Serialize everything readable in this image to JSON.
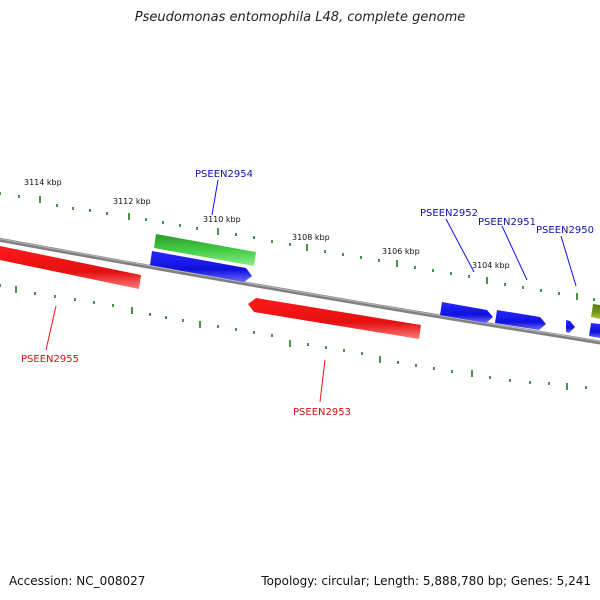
{
  "title": "Pseudomonas entomophila L48, complete genome",
  "footer": {
    "accession": "Accession: NC_008027",
    "summary": "Topology: circular; Length: 5,888,780 bp; Genes: 5,241"
  },
  "scale": {
    "tick_labels": [
      "3114 kbp",
      "3112 kbp",
      "3110 kbp",
      "3108 kbp",
      "3106 kbp",
      "3104 kbp"
    ]
  },
  "genes": {
    "PSEEN2955": {
      "label": "PSEEN2955",
      "strand": "reverse",
      "color": "#ee1111"
    },
    "PSEEN2954": {
      "label": "PSEEN2954",
      "strand": "forward",
      "color": "#1111ee"
    },
    "PSEEN2953": {
      "label": "PSEEN2953",
      "strand": "reverse",
      "color": "#ee1111"
    },
    "PSEEN2952": {
      "label": "PSEEN2952",
      "strand": "forward",
      "color": "#1111ee"
    },
    "PSEEN2951": {
      "label": "PSEEN2951",
      "strand": "forward",
      "color": "#1111ee"
    },
    "PSEEN2950": {
      "label": "PSEEN2950",
      "strand": "forward",
      "color": "#1111ee"
    }
  },
  "colors": {
    "backbone": "#808080",
    "forward_gene": "#1111ee",
    "reverse_gene": "#ee1111",
    "feature_green": "#33bb33",
    "feature_olive": "#7a9a1a",
    "tick_marks": "#1a7a1a",
    "forward_label": "#1111aa",
    "reverse_label": "#cc1111"
  }
}
